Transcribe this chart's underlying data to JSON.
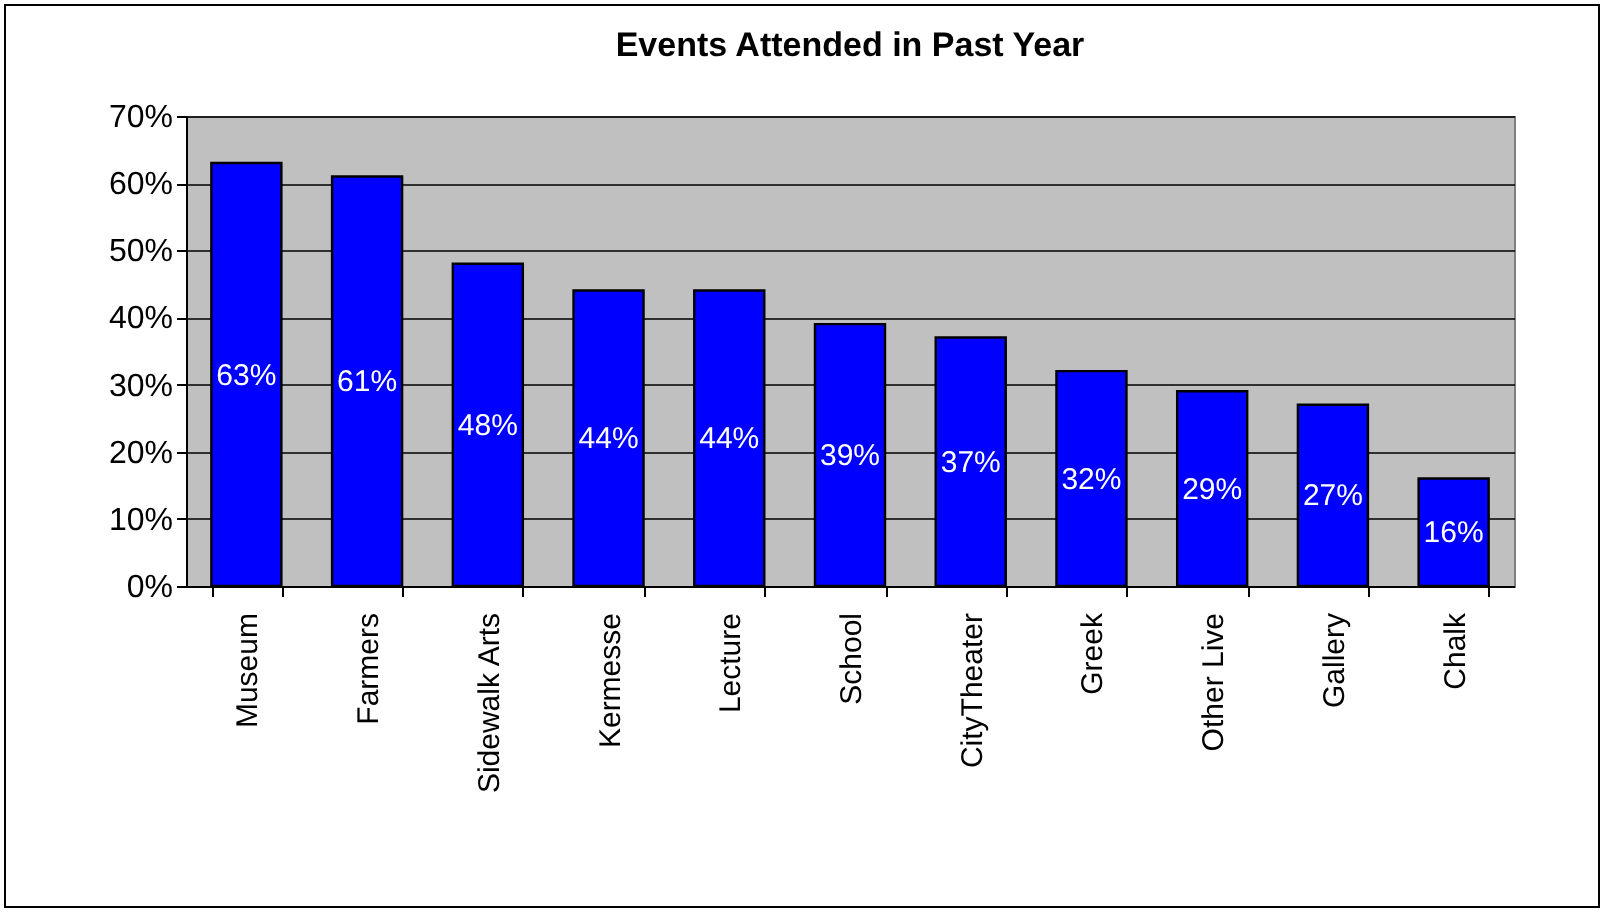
{
  "chart_data": {
    "type": "bar",
    "title": "Events Attended in Past Year",
    "categories": [
      "Museum",
      "Farmers",
      "Sidewalk Arts",
      "Kermesse",
      "Lecture",
      "School",
      "CityTheater",
      "Greek",
      "Other Live",
      "Gallery",
      "Chalk"
    ],
    "values": [
      63,
      61,
      48,
      44,
      44,
      39,
      37,
      32,
      29,
      27,
      16
    ],
    "value_labels": [
      "63%",
      "61%",
      "48%",
      "44%",
      "44%",
      "39%",
      "37%",
      "32%",
      "29%",
      "27%",
      "16%"
    ],
    "color": "#0000ff",
    "ylim": [
      0,
      70
    ],
    "yticks": [
      {
        "value": 0,
        "label": "0%"
      },
      {
        "value": 10,
        "label": "10%"
      },
      {
        "value": 20,
        "label": "20%"
      },
      {
        "value": 30,
        "label": "30%"
      },
      {
        "value": 40,
        "label": "40%"
      },
      {
        "value": 50,
        "label": "50%"
      },
      {
        "value": 60,
        "label": "60%"
      },
      {
        "value": 70,
        "label": "70%"
      }
    ],
    "grid": "y"
  }
}
